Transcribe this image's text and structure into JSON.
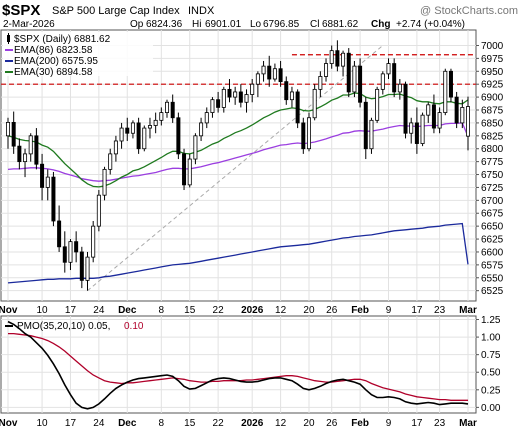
{
  "header": {
    "symbol": "$SPX",
    "name": "S&P 500 Large Cap Index",
    "exchange": "INDX",
    "watermark": "@ StockCharts.com",
    "date": "2-Mar-2026",
    "ohlc": {
      "open_label": "Op",
      "open": "6824.36",
      "high_label": "Hi",
      "high": "6901.01",
      "low_label": "Lo",
      "low": "6796.85",
      "close_label": "Cl",
      "close": "6881.62",
      "change_label": "Chg",
      "change": "+2.74 (+0.04%)"
    }
  },
  "legend": [
    {
      "label": "$SPX (Daily) 6881.62",
      "marker": "candle"
    },
    {
      "label": "EMA(86) 6823.58",
      "marker": "line",
      "color": "#9b3ee0"
    },
    {
      "label": "EMA(200) 6575.95",
      "marker": "line",
      "color": "#1b2a9c"
    },
    {
      "label": "EMA(30) 6894.58",
      "marker": "line",
      "color": "#1f7a1f"
    }
  ],
  "colors": {
    "up_candle": "#ffffff",
    "down_candle": "#000000",
    "ema30": "#1f7a1f",
    "ema86": "#9b3ee0",
    "ema200": "#1b2a9c",
    "resistance": "#cc0000",
    "trendline": "#aaaaaa",
    "pmo": "#000000",
    "pmo_signal": "#b0002a",
    "grid": "#e2e2e2"
  },
  "x_labels": [
    "Nov",
    "10",
    "17",
    "24",
    "Dec",
    "8",
    "15",
    "22",
    "2026",
    "12",
    "20",
    "26",
    "Feb",
    "9",
    "17",
    "23",
    "Mar"
  ],
  "x_label_index": [
    0,
    6,
    11,
    16,
    21,
    27,
    32,
    37,
    43,
    48,
    53,
    57,
    62,
    67,
    72,
    76,
    81
  ],
  "bold_x_labels": [
    "Nov",
    "Dec",
    "2026",
    "Feb",
    "Mar"
  ],
  "pmo_panel": {
    "title": "PMO(35,20,10) 0.05,",
    "signal_value": "0.10",
    "y_ticks": [
      "1.25",
      "1.00",
      "0.75",
      "0.50",
      "0.25",
      "0.00"
    ]
  },
  "chart_data": [
    {
      "type": "candlestick",
      "title": "$SPX (Daily) 6881.62",
      "ylim": [
        6505,
        7030
      ],
      "y_ticks": [
        6525,
        6550,
        6575,
        6600,
        6625,
        6650,
        6675,
        6700,
        6725,
        6750,
        6775,
        6800,
        6825,
        6850,
        6875,
        6900,
        6925,
        6950,
        6975,
        7000
      ],
      "horizontal_lines": [
        6925,
        6982
      ],
      "candles": [
        [
          6825,
          6860,
          6800,
          6851
        ],
        [
          6851,
          6872,
          6790,
          6805
        ],
        [
          6805,
          6820,
          6760,
          6775
        ],
        [
          6775,
          6800,
          6745,
          6790
        ],
        [
          6790,
          6830,
          6775,
          6825
        ],
        [
          6825,
          6840,
          6760,
          6770
        ],
        [
          6770,
          6790,
          6700,
          6725
        ],
        [
          6725,
          6760,
          6700,
          6745
        ],
        [
          6745,
          6755,
          6650,
          6660
        ],
        [
          6660,
          6690,
          6600,
          6610
        ],
        [
          6610,
          6640,
          6560,
          6580
        ],
        [
          6580,
          6625,
          6565,
          6620
        ],
        [
          6620,
          6640,
          6580,
          6600
        ],
        [
          6600,
          6610,
          6530,
          6545
        ],
        [
          6545,
          6600,
          6525,
          6590
        ],
        [
          6590,
          6660,
          6580,
          6650
        ],
        [
          6650,
          6720,
          6640,
          6710
        ],
        [
          6710,
          6765,
          6700,
          6760
        ],
        [
          6760,
          6800,
          6750,
          6790
        ],
        [
          6790,
          6825,
          6775,
          6815
        ],
        [
          6815,
          6850,
          6800,
          6840
        ],
        [
          6840,
          6860,
          6815,
          6830
        ],
        [
          6830,
          6855,
          6820,
          6850
        ],
        [
          6850,
          6860,
          6790,
          6800
        ],
        [
          6800,
          6845,
          6795,
          6840
        ],
        [
          6840,
          6860,
          6820,
          6845
        ],
        [
          6845,
          6870,
          6830,
          6855
        ],
        [
          6855,
          6880,
          6845,
          6870
        ],
        [
          6870,
          6895,
          6860,
          6890
        ],
        [
          6890,
          6905,
          6850,
          6860
        ],
        [
          6860,
          6870,
          6780,
          6790
        ],
        [
          6790,
          6800,
          6720,
          6730
        ],
        [
          6730,
          6790,
          6725,
          6780
        ],
        [
          6780,
          6830,
          6770,
          6825
        ],
        [
          6825,
          6860,
          6815,
          6850
        ],
        [
          6850,
          6880,
          6840,
          6870
        ],
        [
          6870,
          6900,
          6860,
          6895
        ],
        [
          6895,
          6910,
          6870,
          6880
        ],
        [
          6880,
          6920,
          6870,
          6915
        ],
        [
          6915,
          6935,
          6890,
          6900
        ],
        [
          6900,
          6920,
          6885,
          6910
        ],
        [
          6910,
          6925,
          6880,
          6890
        ],
        [
          6890,
          6915,
          6870,
          6905
        ],
        [
          6905,
          6935,
          6890,
          6925
        ],
        [
          6925,
          6950,
          6900,
          6945
        ],
        [
          6945,
          6970,
          6930,
          6960
        ],
        [
          6960,
          6980,
          6920,
          6935
        ],
        [
          6935,
          6965,
          6930,
          6955
        ],
        [
          6955,
          6970,
          6920,
          6930
        ],
        [
          6930,
          6940,
          6885,
          6895
        ],
        [
          6895,
          6920,
          6880,
          6910
        ],
        [
          6910,
          6915,
          6840,
          6850
        ],
        [
          6850,
          6860,
          6790,
          6800
        ],
        [
          6800,
          6870,
          6795,
          6860
        ],
        [
          6860,
          6925,
          6855,
          6915
        ],
        [
          6915,
          6950,
          6900,
          6940
        ],
        [
          6940,
          6975,
          6930,
          6965
        ],
        [
          6965,
          7000,
          6955,
          6990
        ],
        [
          6990,
          7010,
          6950,
          6960
        ],
        [
          6960,
          6990,
          6940,
          6985
        ],
        [
          6985,
          6995,
          6900,
          6910
        ],
        [
          6910,
          6970,
          6900,
          6960
        ],
        [
          6960,
          6975,
          6880,
          6890
        ],
        [
          6890,
          6900,
          6780,
          6800
        ],
        [
          6800,
          6860,
          6790,
          6855
        ],
        [
          6855,
          6920,
          6850,
          6915
        ],
        [
          6915,
          6950,
          6905,
          6945
        ],
        [
          6945,
          6975,
          6935,
          6965
        ],
        [
          6965,
          6975,
          6900,
          6910
        ],
        [
          6910,
          6935,
          6895,
          6925
        ],
        [
          6925,
          6930,
          6820,
          6830
        ],
        [
          6830,
          6860,
          6810,
          6850
        ],
        [
          6850,
          6880,
          6790,
          6810
        ],
        [
          6810,
          6870,
          6805,
          6865
        ],
        [
          6865,
          6890,
          6850,
          6885
        ],
        [
          6885,
          6905,
          6830,
          6840
        ],
        [
          6840,
          6880,
          6830,
          6870
        ],
        [
          6870,
          6955,
          6865,
          6950
        ],
        [
          6950,
          6955,
          6890,
          6900
        ],
        [
          6900,
          6910,
          6840,
          6850
        ],
        [
          6850,
          6895,
          6840,
          6880
        ],
        [
          6824.36,
          6901.01,
          6796.85,
          6881.62
        ]
      ],
      "ema30": [
        6825,
        6822,
        6818,
        6816,
        6815,
        6813,
        6807,
        6803,
        6795,
        6783,
        6771,
        6761,
        6751,
        6740,
        6732,
        6727,
        6726,
        6728,
        6732,
        6738,
        6745,
        6750,
        6757,
        6760,
        6765,
        6771,
        6777,
        6783,
        6790,
        6795,
        6795,
        6791,
        6790,
        6793,
        6797,
        6803,
        6809,
        6813,
        6820,
        6825,
        6831,
        6835,
        6840,
        6846,
        6853,
        6860,
        6865,
        6871,
        6875,
        6877,
        6879,
        6878,
        6874,
        6873,
        6876,
        6881,
        6887,
        6894,
        6898,
        6904,
        6904,
        6908,
        6907,
        6900,
        6897,
        6898,
        6901,
        6905,
        6905,
        6906,
        6902,
        6899,
        6893,
        6891,
        6891,
        6888,
        6887,
        6891,
        6891,
        6888,
        6887,
        6894.58
      ],
      "ema86": [
        6760,
        6761,
        6761,
        6762,
        6763,
        6763,
        6762,
        6761,
        6759,
        6756,
        6752,
        6749,
        6746,
        6742,
        6740,
        6738,
        6737,
        6738,
        6739,
        6741,
        6743,
        6745,
        6747,
        6748,
        6750,
        6752,
        6754,
        6757,
        6760,
        6762,
        6762,
        6761,
        6761,
        6763,
        6765,
        6768,
        6771,
        6773,
        6776,
        6779,
        6782,
        6785,
        6788,
        6791,
        6794,
        6798,
        6801,
        6804,
        6807,
        6808,
        6810,
        6811,
        6810,
        6811,
        6813,
        6816,
        6819,
        6823,
        6826,
        6830,
        6831,
        6834,
        6835,
        6834,
        6834,
        6836,
        6838,
        6841,
        6843,
        6845,
        6844,
        6844,
        6843,
        6844,
        6845,
        6845,
        6845,
        6848,
        6849,
        6849,
        6850,
        6823.58
      ],
      "ema200": [
        6540,
        6541,
        6542,
        6543,
        6544,
        6545,
        6546,
        6547,
        6547,
        6548,
        6548,
        6548,
        6549,
        6549,
        6549,
        6549,
        6550,
        6552,
        6553,
        6555,
        6557,
        6559,
        6561,
        6563,
        6565,
        6567,
        6569,
        6571,
        6573,
        6575,
        6576,
        6577,
        6578,
        6580,
        6582,
        6584,
        6586,
        6588,
        6590,
        6592,
        6594,
        6596,
        6598,
        6600,
        6602,
        6604,
        6606,
        6608,
        6610,
        6611,
        6612,
        6613,
        6614,
        6615,
        6617,
        6619,
        6621,
        6623,
        6625,
        6627,
        6628,
        6630,
        6631,
        6632,
        6633,
        6635,
        6637,
        6639,
        6641,
        6642,
        6643,
        6644,
        6645,
        6646,
        6648,
        6649,
        6650,
        6652,
        6653,
        6654,
        6655,
        6575.95
      ],
      "trendline": [
        [
          14,
          6525
        ],
        [
          66,
          7000
        ]
      ]
    },
    {
      "type": "line",
      "title": "PMO(35,20,10)",
      "ylim": [
        -0.08,
        1.3
      ],
      "y_ticks": [
        0.0,
        0.25,
        0.5,
        0.75,
        1.0,
        1.25
      ],
      "series": [
        {
          "name": "PMO(35,20,10)",
          "values": [
            1.22,
            1.18,
            1.12,
            1.05,
            1.0,
            0.92,
            0.84,
            0.74,
            0.62,
            0.48,
            0.32,
            0.18,
            0.06,
            0.0,
            -0.02,
            0.0,
            0.05,
            0.12,
            0.2,
            0.27,
            0.32,
            0.36,
            0.39,
            0.41,
            0.42,
            0.43,
            0.44,
            0.45,
            0.46,
            0.44,
            0.38,
            0.3,
            0.26,
            0.27,
            0.31,
            0.35,
            0.39,
            0.41,
            0.42,
            0.41,
            0.39,
            0.37,
            0.36,
            0.36,
            0.37,
            0.39,
            0.41,
            0.42,
            0.42,
            0.4,
            0.38,
            0.33,
            0.27,
            0.25,
            0.27,
            0.3,
            0.34,
            0.37,
            0.39,
            0.4,
            0.38,
            0.36,
            0.33,
            0.25,
            0.18,
            0.14,
            0.14,
            0.15,
            0.14,
            0.12,
            0.08,
            0.06,
            0.05,
            0.06,
            0.07,
            0.06,
            0.04,
            0.05,
            0.06,
            0.06,
            0.06,
            0.05
          ]
        },
        {
          "name": "Signal",
          "values": [
            1.05,
            1.05,
            1.04,
            1.03,
            1.02,
            1.0,
            0.98,
            0.95,
            0.91,
            0.86,
            0.8,
            0.73,
            0.66,
            0.59,
            0.52,
            0.46,
            0.42,
            0.38,
            0.36,
            0.35,
            0.34,
            0.35,
            0.35,
            0.36,
            0.37,
            0.38,
            0.39,
            0.4,
            0.41,
            0.42,
            0.41,
            0.4,
            0.38,
            0.37,
            0.36,
            0.36,
            0.37,
            0.37,
            0.38,
            0.38,
            0.38,
            0.38,
            0.39,
            0.39,
            0.4,
            0.41,
            0.42,
            0.43,
            0.44,
            0.45,
            0.45,
            0.44,
            0.42,
            0.4,
            0.38,
            0.37,
            0.36,
            0.36,
            0.37,
            0.38,
            0.39,
            0.4,
            0.4,
            0.38,
            0.34,
            0.31,
            0.28,
            0.26,
            0.24,
            0.22,
            0.19,
            0.17,
            0.15,
            0.14,
            0.13,
            0.12,
            0.11,
            0.11,
            0.1,
            0.1,
            0.1,
            0.1
          ]
        }
      ]
    }
  ]
}
